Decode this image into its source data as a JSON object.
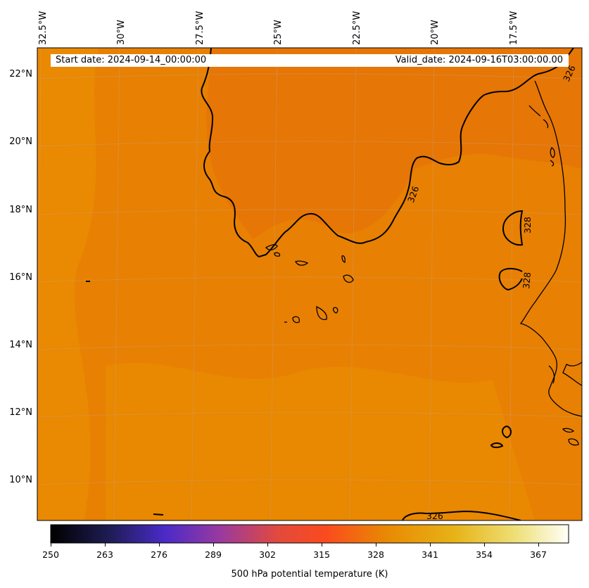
{
  "map": {
    "info": {
      "start_date": "Start date: 2024-09-14_00:00:00",
      "valid_date": "Valid_date: 2024-09-16T03:00:00.00"
    },
    "lon_labels": [
      "32.5°W",
      "30°W",
      "27.5°W",
      "25°W",
      "22.5°W",
      "20°W",
      "17.5°W"
    ],
    "lat_labels": [
      "22°N",
      "20°N",
      "18°N",
      "16°N",
      "14°N",
      "12°N",
      "10°N"
    ],
    "contour_labels": [
      "326",
      "326",
      "328",
      "328",
      "326"
    ],
    "field_colors": {
      "base": "#e88003",
      "dark": "#e57406",
      "light": "#ea8c02"
    }
  },
  "colorbar": {
    "title": "500 hPa potential temperature (K)",
    "ticks": [
      "250",
      "263",
      "276",
      "289",
      "302",
      "315",
      "328",
      "341",
      "354",
      "367"
    ],
    "gradient_stops": [
      "#000000",
      "#1d1c50",
      "#4a2ac8",
      "#9b3a9e",
      "#e24a3c",
      "#fb4a1e",
      "#e88a03",
      "#e7b316",
      "#eee07a",
      "#fffff8"
    ]
  }
}
